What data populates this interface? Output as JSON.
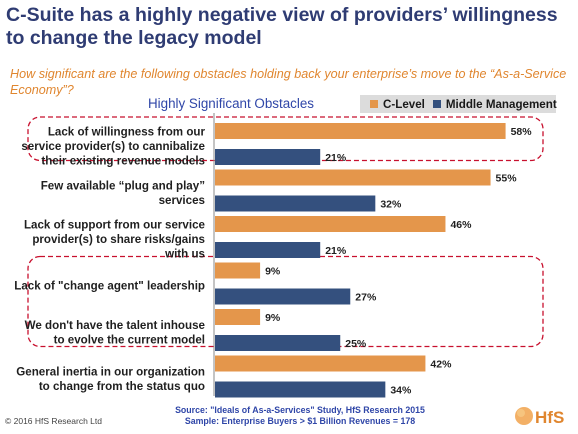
{
  "title": "C-Suite has a highly negative view of providers’ willingness to change the legacy model",
  "question": "How significant are the following obstacles holding back your enterprise’s move to the “As-a-Service Economy”?",
  "subtitle": "Highly Significant Obstacles",
  "legend": {
    "c_level": "C-Level",
    "middle_mgmt": "Middle Management"
  },
  "colors": {
    "c_level": "#e4964b",
    "middle_mgmt": "#34507e",
    "highlight": "#c8102e",
    "title": "#2f3c73"
  },
  "source_line1": "Source: \"Ideals of As-a-Services\" Study, HfS Research 2015",
  "source_line2": "Sample: Enterprise Buyers > $1 Billion Revenues = 178",
  "copyright": "© 2016 HfS Research Ltd",
  "logo_text": "HfS",
  "chart_data": {
    "type": "bar",
    "orientation": "horizontal",
    "categories": [
      [
        "Lack of willingness from our",
        "service provider(s) to cannibalize",
        "their existing revenue models"
      ],
      [
        "Few available “plug and play”",
        "services"
      ],
      [
        "Lack of support from our service",
        "provider(s) to share risks/gains",
        "with us"
      ],
      [
        "Lack of \"change agent\" leadership"
      ],
      [
        "We don't have the talent inhouse",
        "to evolve the current model"
      ],
      [
        "General inertia in our organization",
        "to change from the status quo"
      ]
    ],
    "series": [
      {
        "name": "C-Level",
        "values": [
          58,
          55,
          46,
          9,
          9,
          42
        ],
        "labels": [
          "58%",
          "55%",
          "46%",
          "9%",
          "9%",
          "42%"
        ]
      },
      {
        "name": "Middle Management",
        "values": [
          21,
          32,
          21,
          27,
          25,
          34
        ],
        "labels": [
          "21%",
          "32%",
          "21%",
          "27%",
          "25%",
          "34%"
        ]
      }
    ],
    "highlighted_groups": [
      [
        0
      ],
      [
        3,
        4
      ]
    ],
    "xlim": [
      0,
      60
    ],
    "grid": false,
    "legend_position": "top-right"
  }
}
